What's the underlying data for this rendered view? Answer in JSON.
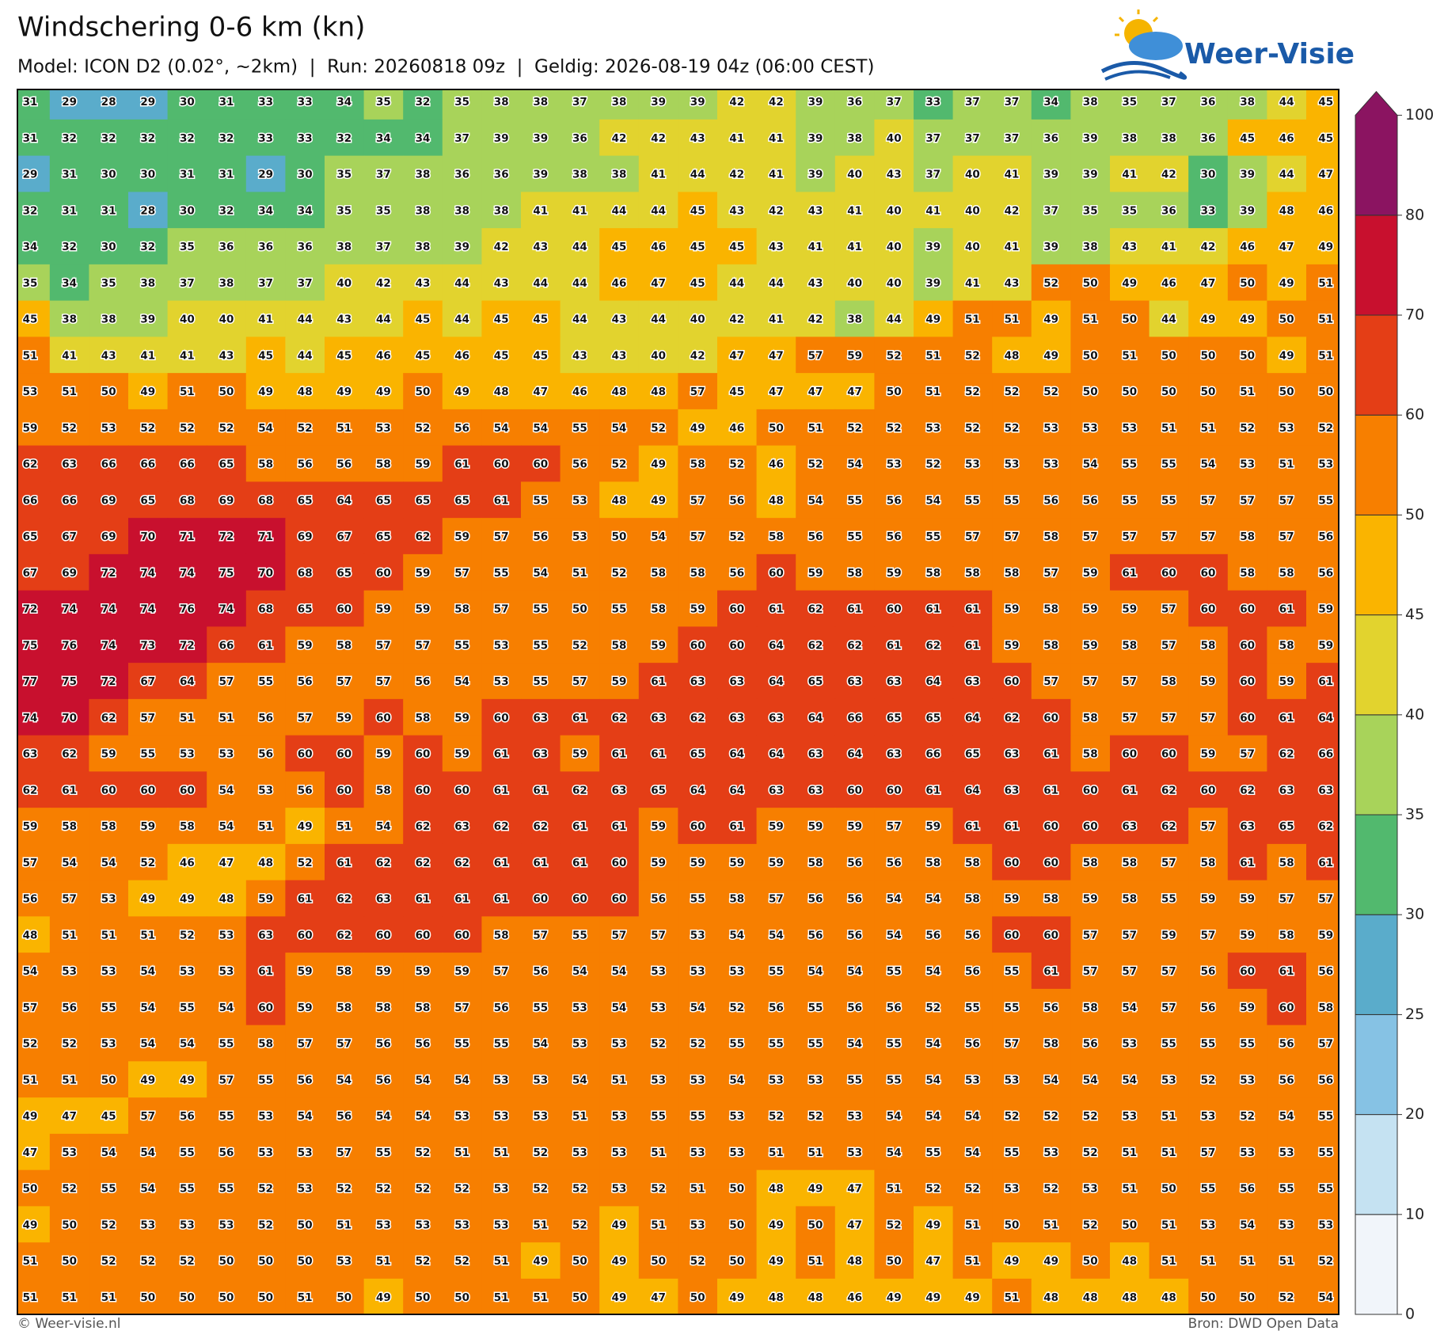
{
  "header": {
    "title": "Windschering 0-6 km (kn)",
    "subtitle": "Model: ICON D2 (0.02°, ~2km)  |  Run: 20260818 09z  |  Geldig: 2026-08-19 04z (06:00 CEST)",
    "logo": "Weer-Visie"
  },
  "footer": {
    "left": "© Weer-visie.nl",
    "right": "Bron: DWD Open Data"
  },
  "colorbar": {
    "levels": [
      0,
      10,
      20,
      25,
      30,
      35,
      40,
      45,
      50,
      60,
      70,
      80,
      100
    ],
    "colors": [
      "#f1f5fa",
      "#c5e2f2",
      "#86c2e4",
      "#5aaccb",
      "#52b96e",
      "#a8d35a",
      "#e2d32e",
      "#fab400",
      "#f77f00",
      "#e43e16",
      "#c8102e",
      "#8b1461"
    ]
  },
  "grid": {
    "rows": [
      [
        31,
        29,
        28,
        29,
        30,
        31,
        33,
        33,
        34,
        35,
        32,
        35,
        38,
        38,
        37,
        38,
        39,
        39,
        42,
        42,
        39,
        36,
        37,
        33,
        37,
        37,
        34,
        38,
        35,
        37,
        36,
        38,
        44,
        45
      ],
      [
        31,
        32,
        32,
        32,
        32,
        32,
        33,
        33,
        32,
        34,
        34,
        37,
        39,
        39,
        36,
        42,
        42,
        43,
        41,
        41,
        39,
        38,
        40,
        37,
        37,
        37,
        36,
        39,
        38,
        38,
        36,
        45,
        46,
        45
      ],
      [
        29,
        31,
        30,
        30,
        31,
        31,
        29,
        30,
        35,
        37,
        38,
        36,
        36,
        39,
        38,
        38,
        41,
        44,
        42,
        41,
        39,
        40,
        43,
        37,
        40,
        41,
        39,
        39,
        41,
        42,
        30,
        39,
        44,
        47
      ],
      [
        32,
        31,
        31,
        28,
        30,
        32,
        34,
        34,
        35,
        35,
        38,
        38,
        38,
        41,
        41,
        44,
        44,
        45,
        43,
        42,
        43,
        41,
        40,
        41,
        40,
        42,
        37,
        35,
        35,
        36,
        33,
        39,
        48,
        46
      ],
      [
        34,
        32,
        30,
        32,
        35,
        36,
        36,
        36,
        38,
        37,
        38,
        39,
        42,
        43,
        44,
        45,
        46,
        45,
        45,
        43,
        41,
        41,
        40,
        39,
        40,
        41,
        39,
        38,
        43,
        41,
        42,
        46,
        47,
        49
      ],
      [
        35,
        34,
        35,
        38,
        37,
        38,
        37,
        37,
        40,
        42,
        43,
        44,
        43,
        44,
        44,
        46,
        47,
        45,
        44,
        44,
        43,
        40,
        40,
        39,
        41,
        43,
        52,
        50,
        49,
        46,
        47,
        50,
        49,
        51
      ],
      [
        45,
        38,
        38,
        39,
        40,
        40,
        41,
        44,
        43,
        44,
        45,
        44,
        45,
        45,
        44,
        43,
        44,
        40,
        42,
        41,
        42,
        38,
        44,
        49,
        51,
        51,
        49,
        51,
        50,
        44,
        49,
        49,
        50,
        51
      ],
      [
        51,
        41,
        43,
        41,
        41,
        43,
        45,
        44,
        45,
        46,
        45,
        46,
        45,
        45,
        43,
        43,
        40,
        42,
        47,
        47,
        57,
        59,
        52,
        51,
        52,
        48,
        49,
        50,
        51,
        50,
        50,
        50,
        49,
        51
      ],
      [
        53,
        51,
        50,
        49,
        51,
        50,
        49,
        48,
        49,
        49,
        50,
        49,
        48,
        47,
        46,
        48,
        48,
        57,
        45,
        47,
        47,
        47,
        50,
        51,
        52,
        52,
        52,
        50,
        50,
        50,
        50,
        51,
        50,
        50
      ],
      [
        59,
        52,
        53,
        52,
        52,
        52,
        54,
        52,
        51,
        53,
        52,
        56,
        54,
        54,
        55,
        54,
        52,
        49,
        46,
        50,
        51,
        52,
        52,
        53,
        52,
        52,
        53,
        53,
        53,
        51,
        51,
        52,
        53,
        52
      ],
      [
        62,
        63,
        66,
        66,
        66,
        65,
        58,
        56,
        56,
        58,
        59,
        61,
        60,
        60,
        56,
        52,
        49,
        58,
        52,
        46,
        52,
        54,
        53,
        52,
        53,
        53,
        53,
        54,
        55,
        55,
        54,
        53,
        51,
        53
      ],
      [
        66,
        66,
        69,
        65,
        68,
        69,
        68,
        65,
        64,
        65,
        65,
        65,
        61,
        55,
        53,
        48,
        49,
        57,
        56,
        48,
        54,
        55,
        56,
        54,
        55,
        55,
        56,
        56,
        55,
        55,
        57,
        57,
        57,
        55
      ],
      [
        65,
        67,
        69,
        70,
        71,
        72,
        71,
        69,
        67,
        65,
        62,
        59,
        57,
        56,
        53,
        50,
        54,
        57,
        52,
        58,
        56,
        55,
        56,
        55,
        57,
        57,
        58,
        57,
        57,
        57,
        57,
        58,
        57,
        56
      ],
      [
        67,
        69,
        72,
        74,
        74,
        75,
        70,
        68,
        65,
        60,
        59,
        57,
        55,
        54,
        51,
        52,
        58,
        58,
        56,
        60,
        59,
        58,
        59,
        58,
        58,
        58,
        57,
        59,
        61,
        60,
        60,
        58,
        58,
        56
      ],
      [
        72,
        74,
        74,
        74,
        76,
        74,
        68,
        65,
        60,
        59,
        59,
        58,
        57,
        55,
        50,
        55,
        58,
        59,
        60,
        61,
        62,
        61,
        60,
        61,
        61,
        59,
        58,
        59,
        59,
        57,
        60,
        60,
        61,
        59
      ],
      [
        75,
        76,
        74,
        73,
        72,
        66,
        61,
        59,
        58,
        57,
        57,
        55,
        53,
        55,
        52,
        58,
        59,
        60,
        60,
        64,
        62,
        62,
        61,
        62,
        61,
        59,
        58,
        59,
        58,
        57,
        58,
        60,
        58,
        59
      ],
      [
        77,
        75,
        72,
        67,
        64,
        57,
        55,
        56,
        57,
        57,
        56,
        54,
        53,
        55,
        57,
        59,
        61,
        63,
        63,
        64,
        65,
        63,
        63,
        64,
        63,
        60,
        57,
        57,
        57,
        58,
        59,
        60,
        59,
        61
      ],
      [
        74,
        70,
        62,
        57,
        51,
        51,
        56,
        57,
        59,
        60,
        58,
        59,
        60,
        63,
        61,
        62,
        63,
        62,
        63,
        63,
        64,
        66,
        65,
        65,
        64,
        62,
        60,
        58,
        57,
        57,
        57,
        60,
        61,
        64
      ],
      [
        63,
        62,
        59,
        55,
        53,
        53,
        56,
        60,
        60,
        59,
        60,
        59,
        61,
        63,
        59,
        61,
        61,
        65,
        64,
        64,
        63,
        64,
        63,
        66,
        65,
        63,
        61,
        58,
        60,
        60,
        59,
        57,
        62,
        66
      ],
      [
        62,
        61,
        60,
        60,
        60,
        54,
        53,
        56,
        60,
        58,
        60,
        60,
        61,
        61,
        62,
        63,
        65,
        64,
        64,
        63,
        63,
        60,
        60,
        61,
        64,
        63,
        61,
        60,
        61,
        62,
        60,
        62,
        63,
        63
      ],
      [
        59,
        58,
        58,
        59,
        58,
        54,
        51,
        49,
        51,
        54,
        62,
        63,
        62,
        62,
        61,
        61,
        59,
        60,
        61,
        59,
        59,
        59,
        57,
        59,
        61,
        61,
        60,
        60,
        63,
        62,
        57,
        63,
        65,
        62
      ],
      [
        57,
        54,
        54,
        52,
        46,
        47,
        48,
        52,
        61,
        62,
        62,
        62,
        61,
        61,
        61,
        60,
        59,
        59,
        59,
        59,
        58,
        56,
        56,
        58,
        58,
        60,
        60,
        58,
        58,
        57,
        58,
        61,
        58,
        61
      ],
      [
        56,
        57,
        53,
        49,
        49,
        48,
        59,
        61,
        62,
        63,
        61,
        61,
        61,
        60,
        60,
        60,
        56,
        55,
        58,
        57,
        56,
        56,
        54,
        54,
        58,
        59,
        58,
        59,
        58,
        55,
        59,
        59,
        57,
        57
      ],
      [
        48,
        51,
        51,
        51,
        52,
        53,
        63,
        60,
        62,
        60,
        60,
        60,
        58,
        57,
        55,
        57,
        57,
        53,
        54,
        54,
        56,
        56,
        54,
        56,
        56,
        60,
        60,
        57,
        57,
        59,
        57,
        59,
        58,
        59
      ],
      [
        54,
        53,
        53,
        54,
        53,
        53,
        61,
        59,
        58,
        59,
        59,
        59,
        57,
        56,
        54,
        54,
        53,
        53,
        53,
        55,
        54,
        54,
        55,
        54,
        56,
        55,
        61,
        57,
        57,
        57,
        56,
        60,
        61,
        56
      ],
      [
        57,
        56,
        55,
        54,
        55,
        54,
        60,
        59,
        58,
        58,
        58,
        57,
        56,
        55,
        53,
        54,
        53,
        54,
        52,
        56,
        55,
        56,
        56,
        52,
        55,
        55,
        56,
        58,
        54,
        57,
        56,
        59,
        60,
        58
      ],
      [
        52,
        52,
        53,
        54,
        54,
        55,
        58,
        57,
        57,
        56,
        56,
        55,
        55,
        54,
        53,
        53,
        52,
        52,
        55,
        55,
        55,
        54,
        55,
        54,
        56,
        57,
        58,
        56,
        53,
        55,
        55,
        55,
        56,
        57
      ],
      [
        51,
        51,
        50,
        49,
        49,
        57,
        55,
        56,
        54,
        56,
        54,
        54,
        53,
        53,
        54,
        51,
        53,
        53,
        54,
        53,
        53,
        55,
        55,
        54,
        53,
        53,
        54,
        54,
        54,
        53,
        52,
        53,
        56,
        56
      ],
      [
        49,
        47,
        45,
        57,
        56,
        55,
        53,
        54,
        56,
        54,
        54,
        53,
        53,
        53,
        51,
        53,
        55,
        55,
        53,
        52,
        52,
        53,
        54,
        54,
        54,
        52,
        52,
        52,
        53,
        51,
        53,
        52,
        54,
        55
      ],
      [
        47,
        53,
        54,
        54,
        55,
        56,
        53,
        53,
        57,
        55,
        52,
        51,
        51,
        52,
        53,
        53,
        51,
        53,
        53,
        51,
        51,
        53,
        54,
        55,
        54,
        55,
        53,
        52,
        51,
        51,
        57,
        53,
        53,
        55
      ],
      [
        50,
        52,
        55,
        54,
        55,
        55,
        52,
        53,
        52,
        52,
        52,
        52,
        53,
        52,
        52,
        53,
        52,
        51,
        50,
        48,
        49,
        47,
        51,
        52,
        52,
        53,
        52,
        53,
        51,
        50,
        55,
        56,
        55,
        55
      ],
      [
        49,
        50,
        52,
        53,
        53,
        53,
        52,
        50,
        51,
        53,
        53,
        53,
        53,
        51,
        52,
        49,
        51,
        53,
        50,
        49,
        50,
        47,
        52,
        49,
        51,
        50,
        51,
        52,
        50,
        51,
        53,
        54,
        53,
        53
      ],
      [
        51,
        50,
        52,
        52,
        52,
        50,
        50,
        50,
        53,
        51,
        52,
        52,
        51,
        49,
        50,
        49,
        50,
        52,
        50,
        49,
        51,
        48,
        50,
        47,
        51,
        49,
        49,
        50,
        48,
        51,
        51,
        51,
        51,
        52
      ],
      [
        51,
        51,
        51,
        50,
        50,
        50,
        50,
        51,
        50,
        49,
        50,
        50,
        51,
        51,
        50,
        49,
        47,
        50,
        49,
        48,
        48,
        46,
        49,
        49,
        49,
        51,
        48,
        48,
        48,
        48,
        50,
        50,
        52,
        54
      ]
    ]
  }
}
